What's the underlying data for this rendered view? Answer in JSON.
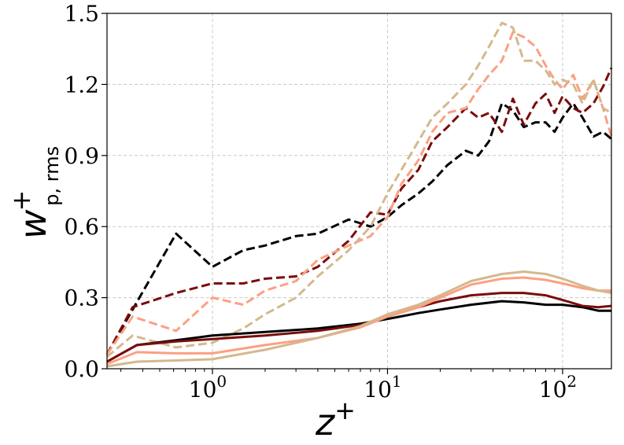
{
  "chart_data": {
    "type": "line",
    "title": "",
    "xlabel": {
      "base": "z",
      "sup": "+"
    },
    "ylabel": {
      "base": "w",
      "sup": "+",
      "sub": "p, rms"
    },
    "xscale": "log",
    "xlim": [
      0.25,
      190
    ],
    "ylim": [
      0,
      1.5
    ],
    "grid": true,
    "legend": "none",
    "x_tick_labels": [
      {
        "value": 1,
        "base": "10",
        "exp": "0"
      },
      {
        "value": 10,
        "base": "10",
        "exp": "1"
      },
      {
        "value": 100,
        "base": "10",
        "exp": "2"
      }
    ],
    "y_tick_labels": [
      {
        "value": 0.0,
        "label": "0.0"
      },
      {
        "value": 0.3,
        "label": "0.3"
      },
      {
        "value": 0.6,
        "label": "0.6"
      },
      {
        "value": 0.9,
        "label": "0.9"
      },
      {
        "value": 1.2,
        "label": "1.2"
      },
      {
        "value": 1.5,
        "label": "1.5"
      }
    ],
    "series": [
      {
        "color": "#000000",
        "style": "dashed",
        "x": [
          0.25,
          0.35,
          0.62,
          1.0,
          1.5,
          2.0,
          3.0,
          4.0,
          6.0,
          8.0,
          10.0,
          12.0,
          15.0,
          18.0,
          22.0,
          28.0,
          33.0,
          38.0,
          45.0,
          52.0,
          60.0,
          70.0,
          80.0,
          90.0,
          100.0,
          115.0,
          130.0,
          150.0,
          170.0,
          190.0
        ],
        "y": [
          0.06,
          0.25,
          0.57,
          0.43,
          0.5,
          0.52,
          0.56,
          0.57,
          0.63,
          0.6,
          0.64,
          0.69,
          0.74,
          0.79,
          0.86,
          0.92,
          0.9,
          0.96,
          1.12,
          1.09,
          1.02,
          1.04,
          1.04,
          1.0,
          1.06,
          1.12,
          1.06,
          0.98,
          1.0,
          0.97
        ]
      },
      {
        "color": "#7b0c0c",
        "style": "dashed",
        "x": [
          0.25,
          0.35,
          0.62,
          1.0,
          1.5,
          2.0,
          3.0,
          4.0,
          6.0,
          8.0,
          10.0,
          12.0,
          15.0,
          18.0,
          22.0,
          28.0,
          33.0,
          38.0,
          45.0,
          52.0,
          60.0,
          70.0,
          80.0,
          90.0,
          100.0,
          115.0,
          130.0,
          150.0,
          170.0,
          190.0
        ],
        "y": [
          0.06,
          0.26,
          0.32,
          0.36,
          0.36,
          0.38,
          0.39,
          0.43,
          0.54,
          0.66,
          0.65,
          0.76,
          0.84,
          0.96,
          1.02,
          1.1,
          1.06,
          1.08,
          1.0,
          1.14,
          1.03,
          1.12,
          1.16,
          1.08,
          1.15,
          1.1,
          1.08,
          1.12,
          1.19,
          1.27
        ]
      },
      {
        "color": "#fca082",
        "style": "dashed",
        "x": [
          0.25,
          0.35,
          0.62,
          1.0,
          1.5,
          2.0,
          3.0,
          4.0,
          6.0,
          8.0,
          10.0,
          12.0,
          15.0,
          18.0,
          22.0,
          28.0,
          33.0,
          38.0,
          45.0,
          52.0,
          60.0,
          70.0,
          80.0,
          90.0,
          100.0,
          115.0,
          130.0,
          150.0,
          170.0,
          190.0
        ],
        "y": [
          0.06,
          0.22,
          0.16,
          0.3,
          0.27,
          0.33,
          0.37,
          0.46,
          0.52,
          0.56,
          0.64,
          0.78,
          0.88,
          1.0,
          1.08,
          1.1,
          1.18,
          1.24,
          1.3,
          1.42,
          1.4,
          1.36,
          1.28,
          1.22,
          1.18,
          1.24,
          1.14,
          1.22,
          1.1,
          0.98
        ]
      },
      {
        "color": "#d4b88e",
        "style": "dashed",
        "x": [
          0.25,
          0.35,
          0.62,
          1.0,
          1.5,
          2.0,
          3.0,
          4.0,
          6.0,
          8.0,
          10.0,
          12.0,
          15.0,
          18.0,
          22.0,
          28.0,
          33.0,
          38.0,
          45.0,
          52.0,
          60.0,
          70.0,
          80.0,
          90.0,
          100.0,
          115.0,
          130.0,
          150.0,
          170.0,
          190.0
        ],
        "y": [
          0.05,
          0.14,
          0.09,
          0.11,
          0.17,
          0.23,
          0.3,
          0.39,
          0.5,
          0.6,
          0.74,
          0.84,
          0.96,
          1.06,
          1.12,
          1.2,
          1.28,
          1.36,
          1.46,
          1.44,
          1.3,
          1.3,
          1.26,
          1.2,
          1.22,
          1.2,
          1.12,
          1.22,
          1.1,
          1.08
        ]
      },
      {
        "color": "#000000",
        "style": "solid",
        "x": [
          0.25,
          0.37,
          0.62,
          1.0,
          2.0,
          4.0,
          7.0,
          10.0,
          15.0,
          20.0,
          30.0,
          45.0,
          60.0,
          80.0,
          100.0,
          130.0,
          160.0,
          190.0
        ],
        "y": [
          0.03,
          0.1,
          0.12,
          0.14,
          0.155,
          0.17,
          0.19,
          0.21,
          0.235,
          0.25,
          0.27,
          0.285,
          0.28,
          0.27,
          0.27,
          0.26,
          0.245,
          0.245
        ]
      },
      {
        "color": "#7b0c0c",
        "style": "solid",
        "x": [
          0.25,
          0.37,
          0.62,
          1.0,
          2.0,
          4.0,
          7.0,
          10.0,
          15.0,
          20.0,
          30.0,
          45.0,
          60.0,
          80.0,
          100.0,
          130.0,
          160.0,
          190.0
        ],
        "y": [
          0.03,
          0.1,
          0.115,
          0.125,
          0.14,
          0.16,
          0.185,
          0.22,
          0.26,
          0.285,
          0.31,
          0.32,
          0.32,
          0.31,
          0.29,
          0.265,
          0.26,
          0.265
        ]
      },
      {
        "color": "#fca082",
        "style": "solid",
        "x": [
          0.25,
          0.37,
          0.62,
          1.0,
          2.0,
          4.0,
          7.0,
          10.0,
          15.0,
          20.0,
          30.0,
          45.0,
          60.0,
          80.0,
          100.0,
          130.0,
          160.0,
          190.0
        ],
        "y": [
          0.02,
          0.07,
          0.065,
          0.065,
          0.1,
          0.13,
          0.175,
          0.22,
          0.26,
          0.3,
          0.355,
          0.38,
          0.385,
          0.375,
          0.36,
          0.34,
          0.33,
          0.33
        ]
      },
      {
        "color": "#d4b88e",
        "style": "solid",
        "x": [
          0.25,
          0.37,
          0.62,
          1.0,
          2.0,
          4.0,
          7.0,
          10.0,
          15.0,
          20.0,
          30.0,
          45.0,
          60.0,
          80.0,
          100.0,
          130.0,
          160.0,
          190.0
        ],
        "y": [
          0.01,
          0.03,
          0.035,
          0.04,
          0.08,
          0.13,
          0.18,
          0.23,
          0.27,
          0.31,
          0.37,
          0.4,
          0.41,
          0.4,
          0.38,
          0.35,
          0.33,
          0.32
        ]
      }
    ]
  }
}
